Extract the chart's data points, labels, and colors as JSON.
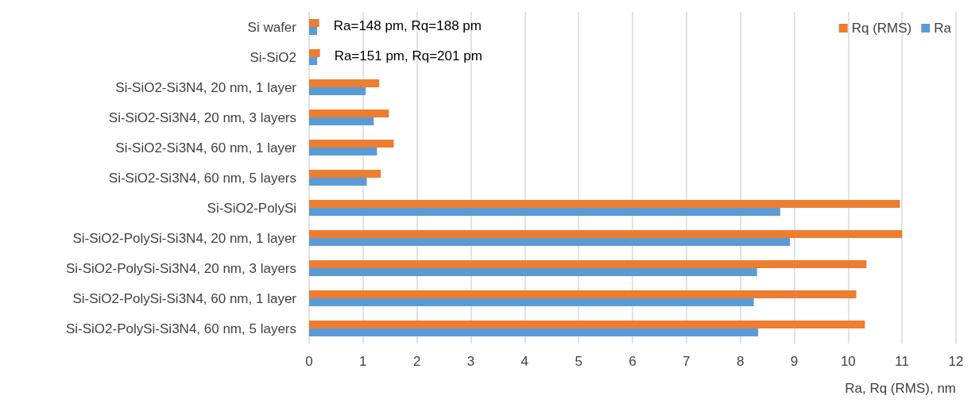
{
  "chart_data": {
    "type": "bar",
    "orientation": "horizontal",
    "xlabel": "Ra, Rq (RMS), nm",
    "categories": [
      "Si wafer",
      "Si-SiO2",
      "Si-SiO2-Si3N4, 20 nm, 1 layer",
      "Si-SiO2-Si3N4, 20 nm, 3 layers",
      "Si-SiO2-Si3N4, 60 nm, 1 layer",
      "Si-SiO2-Si3N4, 60 nm, 5 layers",
      "Si-SiO2-PolySi",
      "Si-SiO2-PolySi-Si3N4, 20 nm, 1 layer",
      "Si-SiO2-PolySi-Si3N4, 20 nm, 3 layers",
      "Si-SiO2-PolySi-Si3N4, 60 nm, 1 layer",
      "Si-SiO2-PolySi-Si3N4, 60 nm, 5 layers"
    ],
    "series": [
      {
        "name": "Rq (RMS)",
        "color": "#ed7d31",
        "values": [
          0.188,
          0.201,
          1.3,
          1.48,
          1.57,
          1.33,
          10.96,
          11.0,
          10.34,
          10.15,
          10.31
        ]
      },
      {
        "name": "Ra",
        "color": "#5b9bd5",
        "values": [
          0.148,
          0.151,
          1.05,
          1.2,
          1.26,
          1.07,
          8.74,
          8.92,
          8.31,
          8.25,
          8.33
        ]
      }
    ],
    "annotations": [
      "Ra=148 pm, Rq=188 pm",
      "Ra=151 pm, Rq=201 pm"
    ],
    "xlim": [
      0,
      12
    ],
    "xticks": [
      0,
      1,
      2,
      3,
      4,
      5,
      6,
      7,
      8,
      9,
      10,
      11,
      12
    ],
    "grid": "x",
    "legend": "top right"
  }
}
